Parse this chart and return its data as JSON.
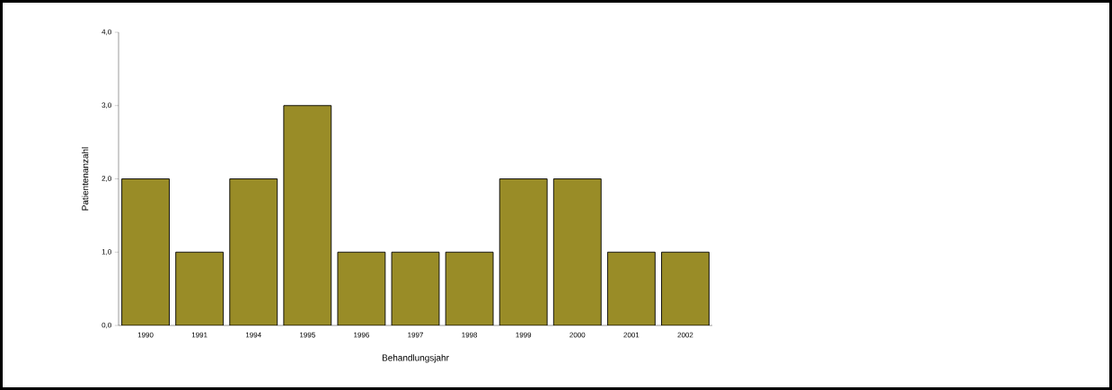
{
  "chart_data": {
    "type": "bar",
    "xlabel": "Behandlungsjahr",
    "ylabel": "Patientenanzahl",
    "categories": [
      "1990",
      "1991",
      "1994",
      "1995",
      "1996",
      "1997",
      "1998",
      "1999",
      "2000",
      "2001",
      "2002"
    ],
    "values": [
      2,
      1,
      2,
      3,
      1,
      1,
      1,
      2,
      2,
      1,
      1
    ],
    "color": "#998c27",
    "ylim": [
      0,
      4
    ],
    "yticks": [
      {
        "value": 0,
        "label": "0,0"
      },
      {
        "value": 1,
        "label": "1,0"
      },
      {
        "value": 2,
        "label": "2,0"
      },
      {
        "value": 3,
        "label": "3,0"
      },
      {
        "value": 4,
        "label": "4,0"
      }
    ],
    "grid": false
  }
}
